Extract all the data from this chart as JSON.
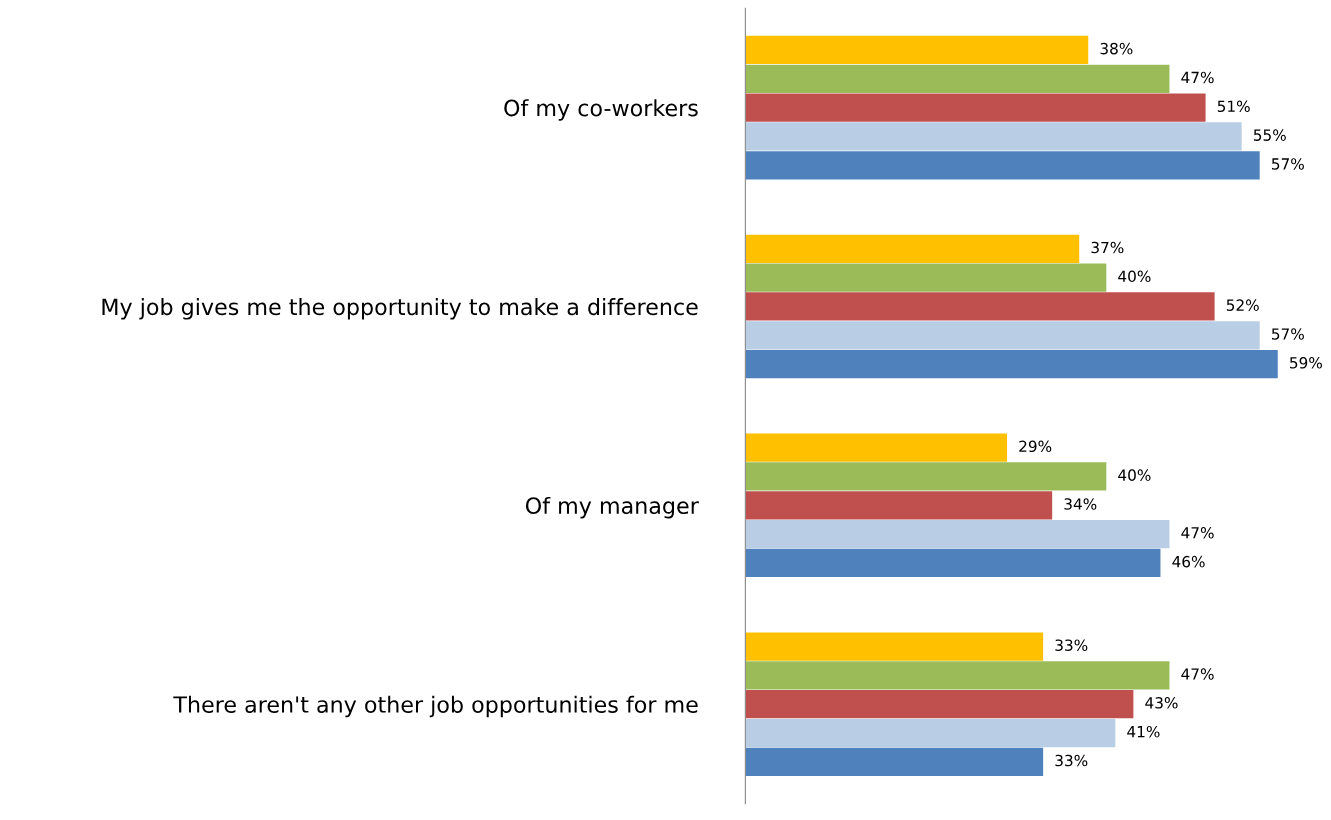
{
  "chart_data": {
    "type": "bar",
    "orientation": "horizontal",
    "categories": [
      "Of my co-workers",
      "My job gives me the opportunity to make a difference",
      "Of my manager",
      "There aren't any other job opportunities for me"
    ],
    "series": [
      {
        "color": "#ffc000",
        "values": [
          38,
          37,
          29,
          33
        ],
        "value_labels": [
          "38%",
          "37%",
          "29%",
          "33%"
        ]
      },
      {
        "color": "#9bbb59",
        "values": [
          47,
          40,
          40,
          47
        ],
        "value_labels": [
          "47%",
          "40%",
          "40%",
          "47%"
        ]
      },
      {
        "color": "#c0504d",
        "values": [
          51,
          52,
          34,
          43
        ],
        "value_labels": [
          "51%",
          "52%",
          "34%",
          "43%"
        ]
      },
      {
        "color": "#b9cde5",
        "values": [
          55,
          57,
          47,
          41
        ],
        "value_labels": [
          "55%",
          "57%",
          "47%",
          "41%"
        ]
      },
      {
        "color": "#4f81bd",
        "values": [
          57,
          59,
          46,
          33
        ],
        "value_labels": [
          "57%",
          "59%",
          "46%",
          "33%"
        ]
      }
    ],
    "tick_labels": "y",
    "grid": false,
    "legend": false
  }
}
